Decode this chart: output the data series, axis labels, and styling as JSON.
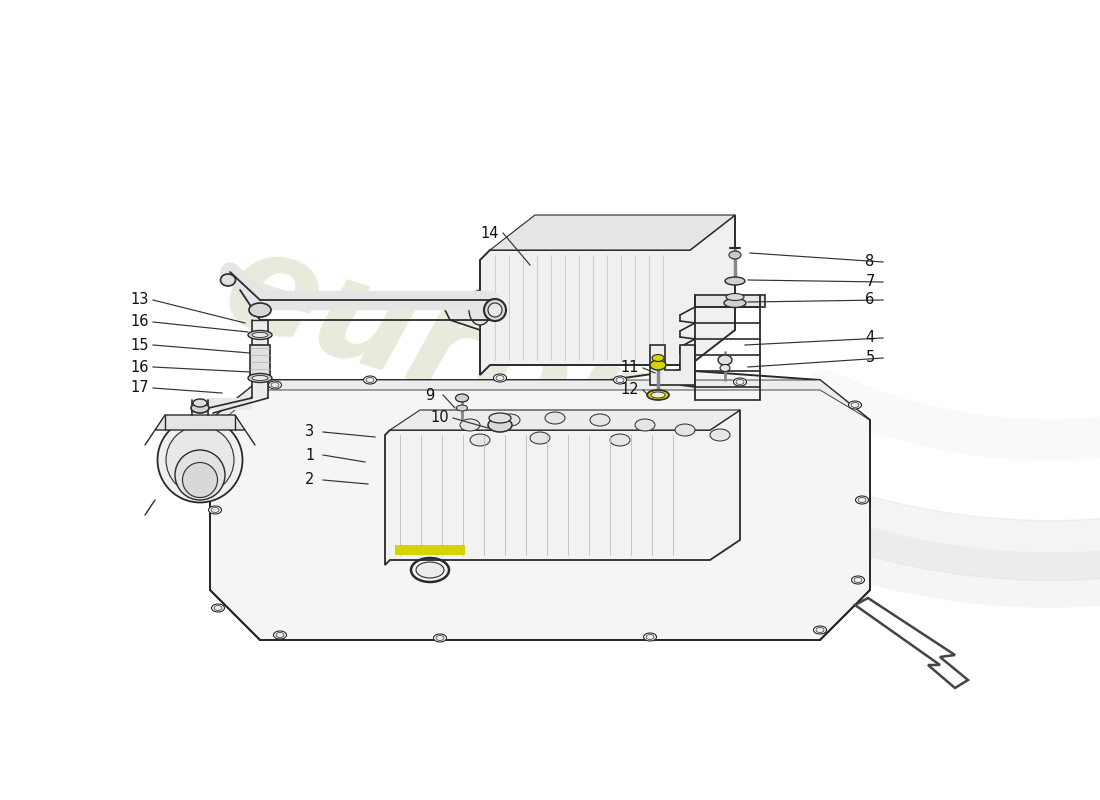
{
  "bg_color": "#ffffff",
  "line_color": "#2a2a2a",
  "wm_color1": "#d8d8c0",
  "wm_color2": "#e0e0cc",
  "yellow": "#d4d400",
  "gray_fill": "#e8e8e8",
  "dark_gray": "#888888",
  "light_fill": "#f5f5f5",
  "mid_fill": "#ececec",
  "labels": [
    [
      "1",
      310,
      455,
      365,
      462
    ],
    [
      "2",
      310,
      480,
      368,
      484
    ],
    [
      "3",
      310,
      432,
      375,
      437
    ],
    [
      "8",
      870,
      262,
      750,
      253
    ],
    [
      "7",
      870,
      282,
      748,
      280
    ],
    [
      "6",
      870,
      300,
      748,
      302
    ],
    [
      "4",
      870,
      338,
      745,
      345
    ],
    [
      "5",
      870,
      358,
      748,
      367
    ],
    [
      "9",
      430,
      395,
      455,
      408
    ],
    [
      "10",
      440,
      418,
      488,
      428
    ],
    [
      "11",
      630,
      368,
      655,
      373
    ],
    [
      "12",
      630,
      390,
      648,
      395
    ],
    [
      "13",
      140,
      300,
      245,
      323
    ],
    [
      "14",
      490,
      233,
      530,
      265
    ],
    [
      "15",
      140,
      345,
      250,
      353
    ],
    [
      "16",
      140,
      322,
      248,
      332
    ],
    [
      "16",
      140,
      367,
      250,
      372
    ],
    [
      "17",
      140,
      388,
      222,
      393
    ]
  ]
}
